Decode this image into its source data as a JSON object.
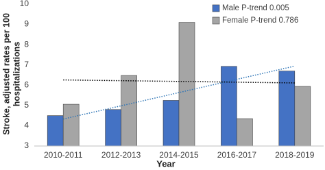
{
  "chart_data": {
    "type": "bar",
    "y_label": [
      "Stroke, adjusted rates per 100",
      "hospitalizations"
    ],
    "x_label": "Year",
    "categories": [
      "2010-2011",
      "2012-2013",
      "2014-2015",
      "2016-2017",
      "2018-2019"
    ],
    "series": [
      {
        "name": "Male P-trend 0.005",
        "color": "#4472c4",
        "trend_color": "#2e75b6",
        "values": [
          4.5,
          4.8,
          5.25,
          6.93,
          6.7
        ]
      },
      {
        "name": "Female P-trend 0.786",
        "color": "#a5a5a5",
        "trend_color": "#000000",
        "values": [
          5.06,
          6.48,
          9.1,
          4.35,
          5.94
        ]
      }
    ],
    "trendline": true,
    "ylim": [
      3,
      10
    ],
    "yticks": [
      3,
      4,
      5,
      6,
      7,
      8,
      9,
      10
    ],
    "grid": false,
    "legend": "top-right"
  }
}
